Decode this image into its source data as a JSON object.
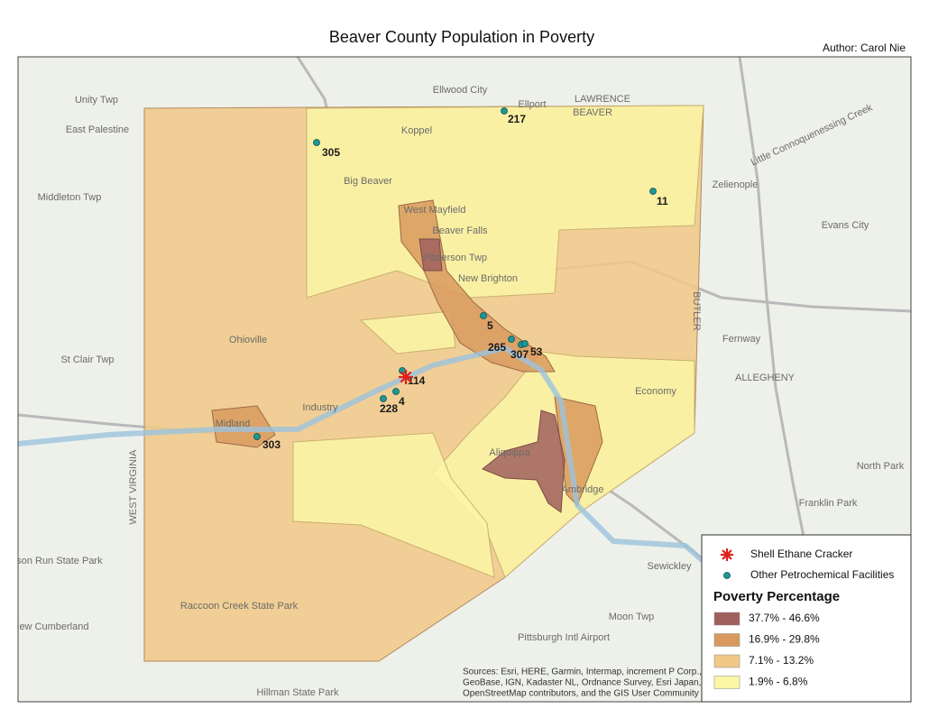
{
  "title": "Beaver County Population in Poverty",
  "author": "Author: Carol Nie",
  "facilities": [
    "305",
    "217",
    "11",
    "5",
    "265",
    "307",
    "53",
    "114",
    "4",
    "228",
    "303"
  ],
  "legend": {
    "symbols": [
      {
        "label": "Shell Ethane Cracker",
        "color": "#e0201b"
      },
      {
        "label": "Other Petrochemical Facilities",
        "color": "#1f9696"
      }
    ],
    "title": "Poverty Percentage",
    "classes": [
      {
        "label": "37.7% - 46.6%",
        "color": "#a0605e"
      },
      {
        "label": "16.9% - 29.8%",
        "color": "#d89a5e"
      },
      {
        "label": "7.1% - 13.2%",
        "color": "#f1c886"
      },
      {
        "label": "1.9% - 6.8%",
        "color": "#fbf6a6"
      }
    ]
  },
  "basemap_labels": [
    "Unity Twp",
    "East Palestine",
    "Ellwood City",
    "Ellport",
    "LAWRENCE",
    "BEAVER",
    "Koppel",
    "Big Beaver",
    "Middleton Twp",
    "Zelienople",
    "Evans City",
    "West Mayfield",
    "Beaver Falls",
    "Patterson Twp",
    "New Brighton",
    "Ohioville",
    "St Clair Twp",
    "Fernway",
    "ALLEGHENY",
    "BUTLER",
    "Economy",
    "Industry",
    "Midland",
    "Aliquippa",
    "Ambridge",
    "North Park",
    "Franklin Park",
    "WEST VIRGINIA",
    "Sewickley",
    "Moon Twp",
    "Pittsburgh Intl Airport",
    "New Cumberland",
    "Hillman State Park",
    "Raccoon Creek State Park",
    "Tomlinson Run State Park",
    "Little Connoquenessing Creek"
  ],
  "sources": [
    "Sources: Esri, HERE, Garmin, Intermap, increment P Corp.,",
    "GeoBase, IGN, Kadaster NL, Ordnance Survey, Esri Japan,",
    "OpenStreetMap contributors, and the GIS User Community"
  ]
}
